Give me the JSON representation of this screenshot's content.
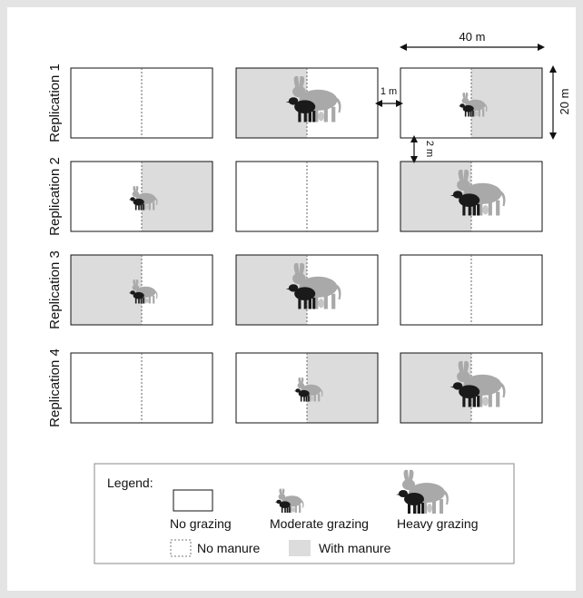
{
  "replications": [
    {
      "label": "Replication 1",
      "plots": [
        {
          "grazing": "none",
          "manure": "none"
        },
        {
          "grazing": "heavy",
          "manure": "left"
        },
        {
          "grazing": "moderate",
          "manure": "right"
        }
      ]
    },
    {
      "label": "Replication 2",
      "plots": [
        {
          "grazing": "moderate",
          "manure": "right"
        },
        {
          "grazing": "none",
          "manure": "none"
        },
        {
          "grazing": "heavy",
          "manure": "left"
        }
      ]
    },
    {
      "label": "Replication 3",
      "plots": [
        {
          "grazing": "moderate",
          "manure": "left"
        },
        {
          "grazing": "heavy",
          "manure": "left"
        },
        {
          "grazing": "none",
          "manure": "none"
        }
      ]
    },
    {
      "label": "Replication 4",
      "plots": [
        {
          "grazing": "none",
          "manure": "none"
        },
        {
          "grazing": "moderate",
          "manure": "right"
        },
        {
          "grazing": "heavy",
          "manure": "left"
        }
      ]
    }
  ],
  "dimensions": {
    "width": "40 m",
    "height": "20 m",
    "col_gap": "1 m",
    "row_gap": "2 m"
  },
  "legend": {
    "title": "Legend:",
    "no_grazing": "No grazing",
    "moderate_grazing": "Moderate grazing",
    "heavy_grazing": "Heavy grazing",
    "no_manure": "No manure",
    "with_manure": "With manure"
  },
  "colors": {
    "manure_fill": "#dcdcdc",
    "cattle_black": "#1a1a1a",
    "cattle_grey": "#a9a9a9",
    "frame": "#e4e4e4"
  }
}
